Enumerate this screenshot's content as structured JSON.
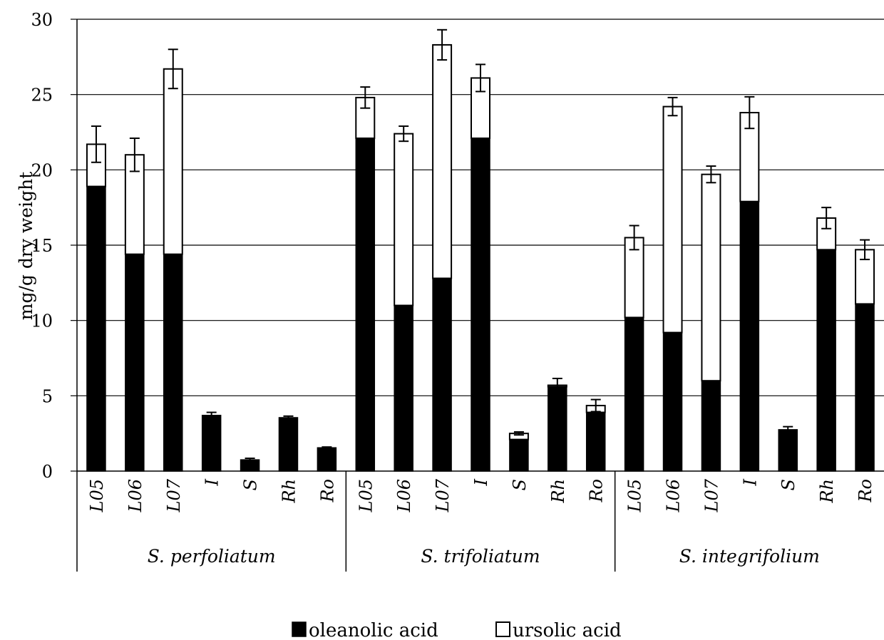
{
  "chart_data": {
    "type": "bar",
    "stacked": true,
    "ylabel": "mg/g dry weight",
    "ylim": [
      0,
      30
    ],
    "yticks": [
      "0",
      "5",
      "10",
      "15",
      "20",
      "25",
      "30"
    ],
    "grid": true,
    "legend_position": "bottom",
    "colors": {
      "oleanolic": "#000000",
      "ursolic": "#ffffff",
      "outline": "#000000"
    },
    "groups": [
      {
        "name": "S. perfoliatum",
        "categories": [
          "L05",
          "L06",
          "L07",
          "I",
          "S",
          "Rh",
          "Ro"
        ]
      },
      {
        "name": "S. trifoliatum",
        "categories": [
          "L05",
          "L06",
          "L07",
          "I",
          "S",
          "Rh",
          "Ro"
        ]
      },
      {
        "name": "S. integrifolium",
        "categories": [
          "L05",
          "L06",
          "L07",
          "I",
          "S",
          "Rh",
          "Ro"
        ]
      }
    ],
    "series": [
      {
        "name": "oleanolic acid",
        "values": [
          18.9,
          14.4,
          14.4,
          3.7,
          0.75,
          3.55,
          1.55,
          22.1,
          11.0,
          12.8,
          22.1,
          2.1,
          5.6,
          3.9,
          10.2,
          9.2,
          6.0,
          17.9,
          2.75,
          14.7,
          11.1
        ]
      },
      {
        "name": "ursolic acid",
        "values": [
          2.8,
          6.6,
          12.3,
          0,
          0,
          0,
          0,
          2.7,
          11.4,
          15.5,
          4.0,
          0.4,
          0.1,
          0.45,
          5.3,
          15.0,
          13.7,
          5.9,
          0,
          2.1,
          3.6
        ]
      }
    ],
    "error": [
      1.2,
      1.1,
      1.3,
      0.2,
      0.1,
      0.1,
      0.05,
      0.7,
      0.5,
      1.0,
      0.9,
      0.1,
      0.45,
      0.4,
      0.8,
      0.6,
      0.55,
      1.05,
      0.2,
      0.7,
      0.65
    ]
  }
}
